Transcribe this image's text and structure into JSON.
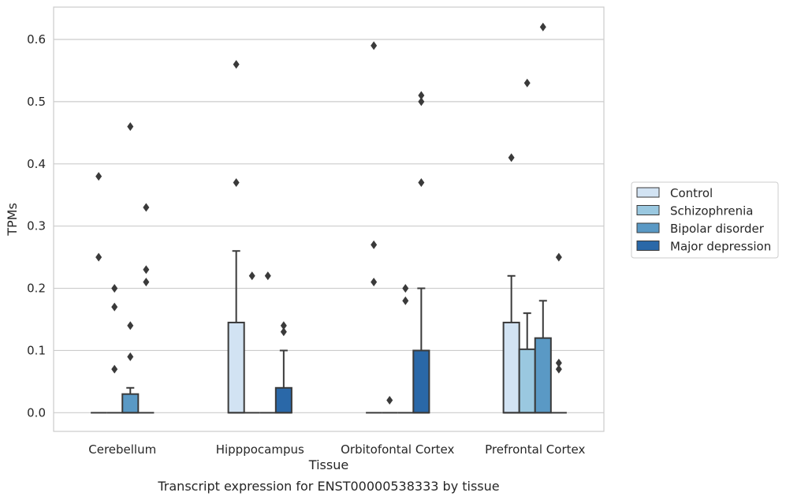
{
  "caption": "Transcript expression for ENST00000538333 by tissue",
  "chart_data": {
    "type": "box",
    "xlabel": "Tissue",
    "ylabel": "TPMs",
    "ylim": [
      -0.03,
      0.652
    ],
    "yticks": [
      0.0,
      0.1,
      0.2,
      0.3,
      0.4,
      0.5,
      0.6
    ],
    "ytick_labels": [
      "0.0",
      "0.1",
      "0.2",
      "0.3",
      "0.4",
      "0.5",
      "0.6"
    ],
    "grid": "horizontal",
    "legend_position": "right",
    "categories": [
      "Cerebellum",
      "Hipppocampus",
      "Orbitofontal Cortex",
      "Prefrontal Cortex"
    ],
    "series": [
      {
        "name": "Control",
        "color": "#d2e3f3",
        "boxes": [
          {
            "q1": 0,
            "median": 0,
            "q3": 0,
            "whislo": 0,
            "whishi": 0,
            "fliers": [
              0.38,
              0.25
            ]
          },
          {
            "q1": 0,
            "median": 0,
            "q3": 0.145,
            "whislo": 0,
            "whishi": 0.26,
            "fliers": [
              0.56,
              0.37
            ]
          },
          {
            "q1": 0,
            "median": 0,
            "q3": 0,
            "whislo": 0,
            "whishi": 0,
            "fliers": [
              0.59,
              0.27,
              0.21
            ]
          },
          {
            "q1": 0,
            "median": 0,
            "q3": 0.145,
            "whislo": 0,
            "whishi": 0.22,
            "fliers": [
              0.41
            ]
          }
        ]
      },
      {
        "name": "Schizophrenia",
        "color": "#9ac8e0",
        "boxes": [
          {
            "q1": 0,
            "median": 0,
            "q3": 0,
            "whislo": 0,
            "whishi": 0,
            "fliers": [
              0.2,
              0.17,
              0.07
            ]
          },
          {
            "q1": 0,
            "median": 0,
            "q3": 0,
            "whislo": 0,
            "whishi": 0,
            "fliers": [
              0.22
            ]
          },
          {
            "q1": 0,
            "median": 0,
            "q3": 0,
            "whislo": 0,
            "whishi": 0,
            "fliers": [
              0.02
            ]
          },
          {
            "q1": 0,
            "median": 0,
            "q3": 0.102,
            "whislo": 0,
            "whishi": 0.16,
            "fliers": [
              0.53
            ]
          }
        ]
      },
      {
        "name": "Bipolar disorder",
        "color": "#5a99c5",
        "boxes": [
          {
            "q1": 0,
            "median": 0,
            "q3": 0.03,
            "whislo": 0,
            "whishi": 0.04,
            "fliers": [
              0.46,
              0.14,
              0.09
            ]
          },
          {
            "q1": 0,
            "median": 0,
            "q3": 0,
            "whislo": 0,
            "whishi": 0,
            "fliers": [
              0.22
            ]
          },
          {
            "q1": 0,
            "median": 0,
            "q3": 0,
            "whislo": 0,
            "whishi": 0,
            "fliers": [
              0.2,
              0.18
            ]
          },
          {
            "q1": 0,
            "median": 0,
            "q3": 0.12,
            "whislo": 0,
            "whishi": 0.18,
            "fliers": [
              0.62
            ]
          }
        ]
      },
      {
        "name": "Major depression",
        "color": "#2a68a8",
        "boxes": [
          {
            "q1": 0,
            "median": 0,
            "q3": 0,
            "whislo": 0,
            "whishi": 0,
            "fliers": [
              0.33,
              0.23,
              0.21
            ]
          },
          {
            "q1": 0,
            "median": 0,
            "q3": 0.04,
            "whislo": 0,
            "whishi": 0.1,
            "fliers": [
              0.14,
              0.13
            ]
          },
          {
            "q1": 0,
            "median": 0,
            "q3": 0.1,
            "whislo": 0,
            "whishi": 0.2,
            "fliers": [
              0.51,
              0.5,
              0.37
            ]
          },
          {
            "q1": 0,
            "median": 0,
            "q3": 0,
            "whislo": 0,
            "whishi": 0,
            "fliers": [
              0.25,
              0.08,
              0.07
            ]
          }
        ]
      }
    ]
  }
}
